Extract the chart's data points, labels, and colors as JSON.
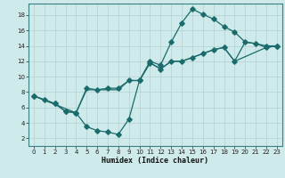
{
  "xlabel": "Humidex (Indice chaleur)",
  "bg_color": "#ceeaea",
  "grid_color": "#b8d4d4",
  "line_color": "#1a6b6b",
  "xlim": [
    -0.5,
    23.5
  ],
  "ylim": [
    1,
    19.5
  ],
  "xticks": [
    0,
    1,
    2,
    3,
    4,
    5,
    6,
    7,
    8,
    9,
    10,
    11,
    12,
    13,
    14,
    15,
    16,
    17,
    18,
    19,
    20,
    21,
    22,
    23
  ],
  "yticks": [
    2,
    4,
    6,
    8,
    10,
    12,
    14,
    16,
    18
  ],
  "line1_x": [
    0,
    1,
    2,
    3,
    4,
    5,
    6,
    7,
    8,
    9,
    10,
    11,
    12,
    13,
    14,
    15,
    16,
    17,
    18,
    19,
    20,
    21,
    22,
    23
  ],
  "line1_y": [
    7.5,
    7.0,
    6.5,
    5.5,
    5.3,
    3.5,
    3.0,
    2.8,
    2.5,
    4.5,
    9.5,
    12.0,
    11.5,
    14.5,
    17.0,
    18.8,
    18.1,
    17.5,
    16.5,
    15.8,
    14.5,
    14.3,
    14.0,
    14.0
  ],
  "line2_x": [
    0,
    2,
    3,
    4,
    5,
    6,
    7,
    8,
    9,
    10,
    11,
    12,
    13,
    14,
    15,
    16,
    17,
    18,
    19,
    22,
    23
  ],
  "line2_y": [
    7.5,
    6.5,
    5.5,
    5.3,
    8.5,
    8.3,
    8.5,
    8.5,
    9.5,
    9.5,
    11.8,
    11.0,
    12.0,
    12.0,
    12.5,
    13.0,
    13.5,
    13.8,
    12.0,
    13.8,
    14.0
  ],
  "line3_x": [
    0,
    4,
    5,
    6,
    7,
    8,
    9,
    10,
    11,
    12,
    13,
    14,
    15,
    16,
    17,
    18,
    19,
    20,
    21,
    22,
    23
  ],
  "line3_y": [
    7.5,
    5.3,
    8.3,
    8.3,
    8.3,
    8.3,
    9.5,
    9.5,
    11.8,
    11.0,
    12.0,
    12.0,
    12.5,
    13.0,
    13.5,
    13.8,
    12.0,
    14.5,
    14.3,
    13.8,
    14.0
  ]
}
